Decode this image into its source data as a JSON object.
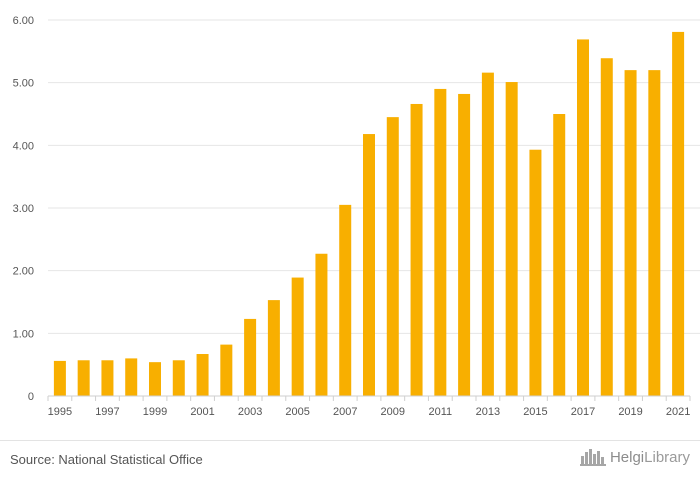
{
  "chart_data": {
    "type": "bar",
    "title": "",
    "xlabel": "",
    "ylabel": "",
    "ylim": [
      0,
      6
    ],
    "yticks": [
      "0",
      "1.00",
      "2.00",
      "3.00",
      "4.00",
      "5.00",
      "6.00"
    ],
    "categories": [
      "1995",
      "1996",
      "1997",
      "1998",
      "1999",
      "2000",
      "2001",
      "2002",
      "2003",
      "2004",
      "2005",
      "2006",
      "2007",
      "2008",
      "2009",
      "2010",
      "2011",
      "2012",
      "2013",
      "2014",
      "2015",
      "2016",
      "2017",
      "2018",
      "2019",
      "2020",
      "2021"
    ],
    "xtick_labels": [
      "1995",
      "1997",
      "1999",
      "2001",
      "2003",
      "2005",
      "2007",
      "2009",
      "2011",
      "2013",
      "2015",
      "2017",
      "2019",
      "2021"
    ],
    "values": [
      0.56,
      0.57,
      0.57,
      0.6,
      0.54,
      0.57,
      0.67,
      0.82,
      1.23,
      1.53,
      1.89,
      2.27,
      3.05,
      4.18,
      4.45,
      4.66,
      4.9,
      4.82,
      5.16,
      5.01,
      3.93,
      4.5,
      5.69,
      5.39,
      5.2,
      5.2,
      5.81
    ],
    "bar_color": "#f8af00",
    "grid": true,
    "legend": "none"
  },
  "footer": {
    "source": "Source: National Statistical Office",
    "logo_text_a": "Helgi",
    "logo_text_b": "Library"
  },
  "icons": {
    "logo": "skyline-icon"
  }
}
